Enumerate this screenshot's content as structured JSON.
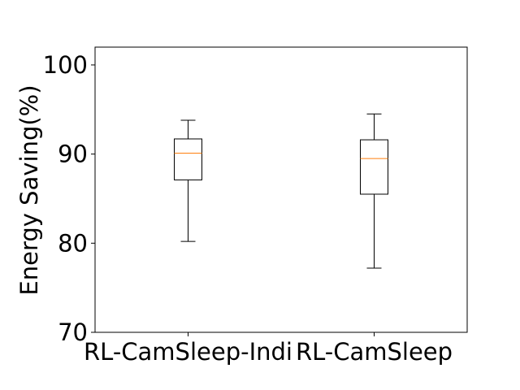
{
  "chart_data": {
    "type": "box",
    "title": "",
    "xlabel": "",
    "ylabel": "Energy Saving(%)",
    "ylim": [
      70,
      102
    ],
    "yticks": [
      70,
      80,
      90,
      100
    ],
    "grid": false,
    "legend": "none",
    "categories": [
      "RL-CamSleep-Indi",
      "RL-CamSleep"
    ],
    "boxes": [
      {
        "category": "RL-CamSleep-Indi",
        "whisker_low": 80.2,
        "q1": 87.1,
        "median": 90.1,
        "q3": 91.7,
        "whisker_high": 93.8
      },
      {
        "category": "RL-CamSleep",
        "whisker_low": 77.2,
        "q1": 85.5,
        "median": 89.5,
        "q3": 91.6,
        "whisker_high": 94.5
      }
    ],
    "colors": {
      "box": "#000000",
      "median": "#ff7f0e",
      "axes": "#000000"
    }
  }
}
